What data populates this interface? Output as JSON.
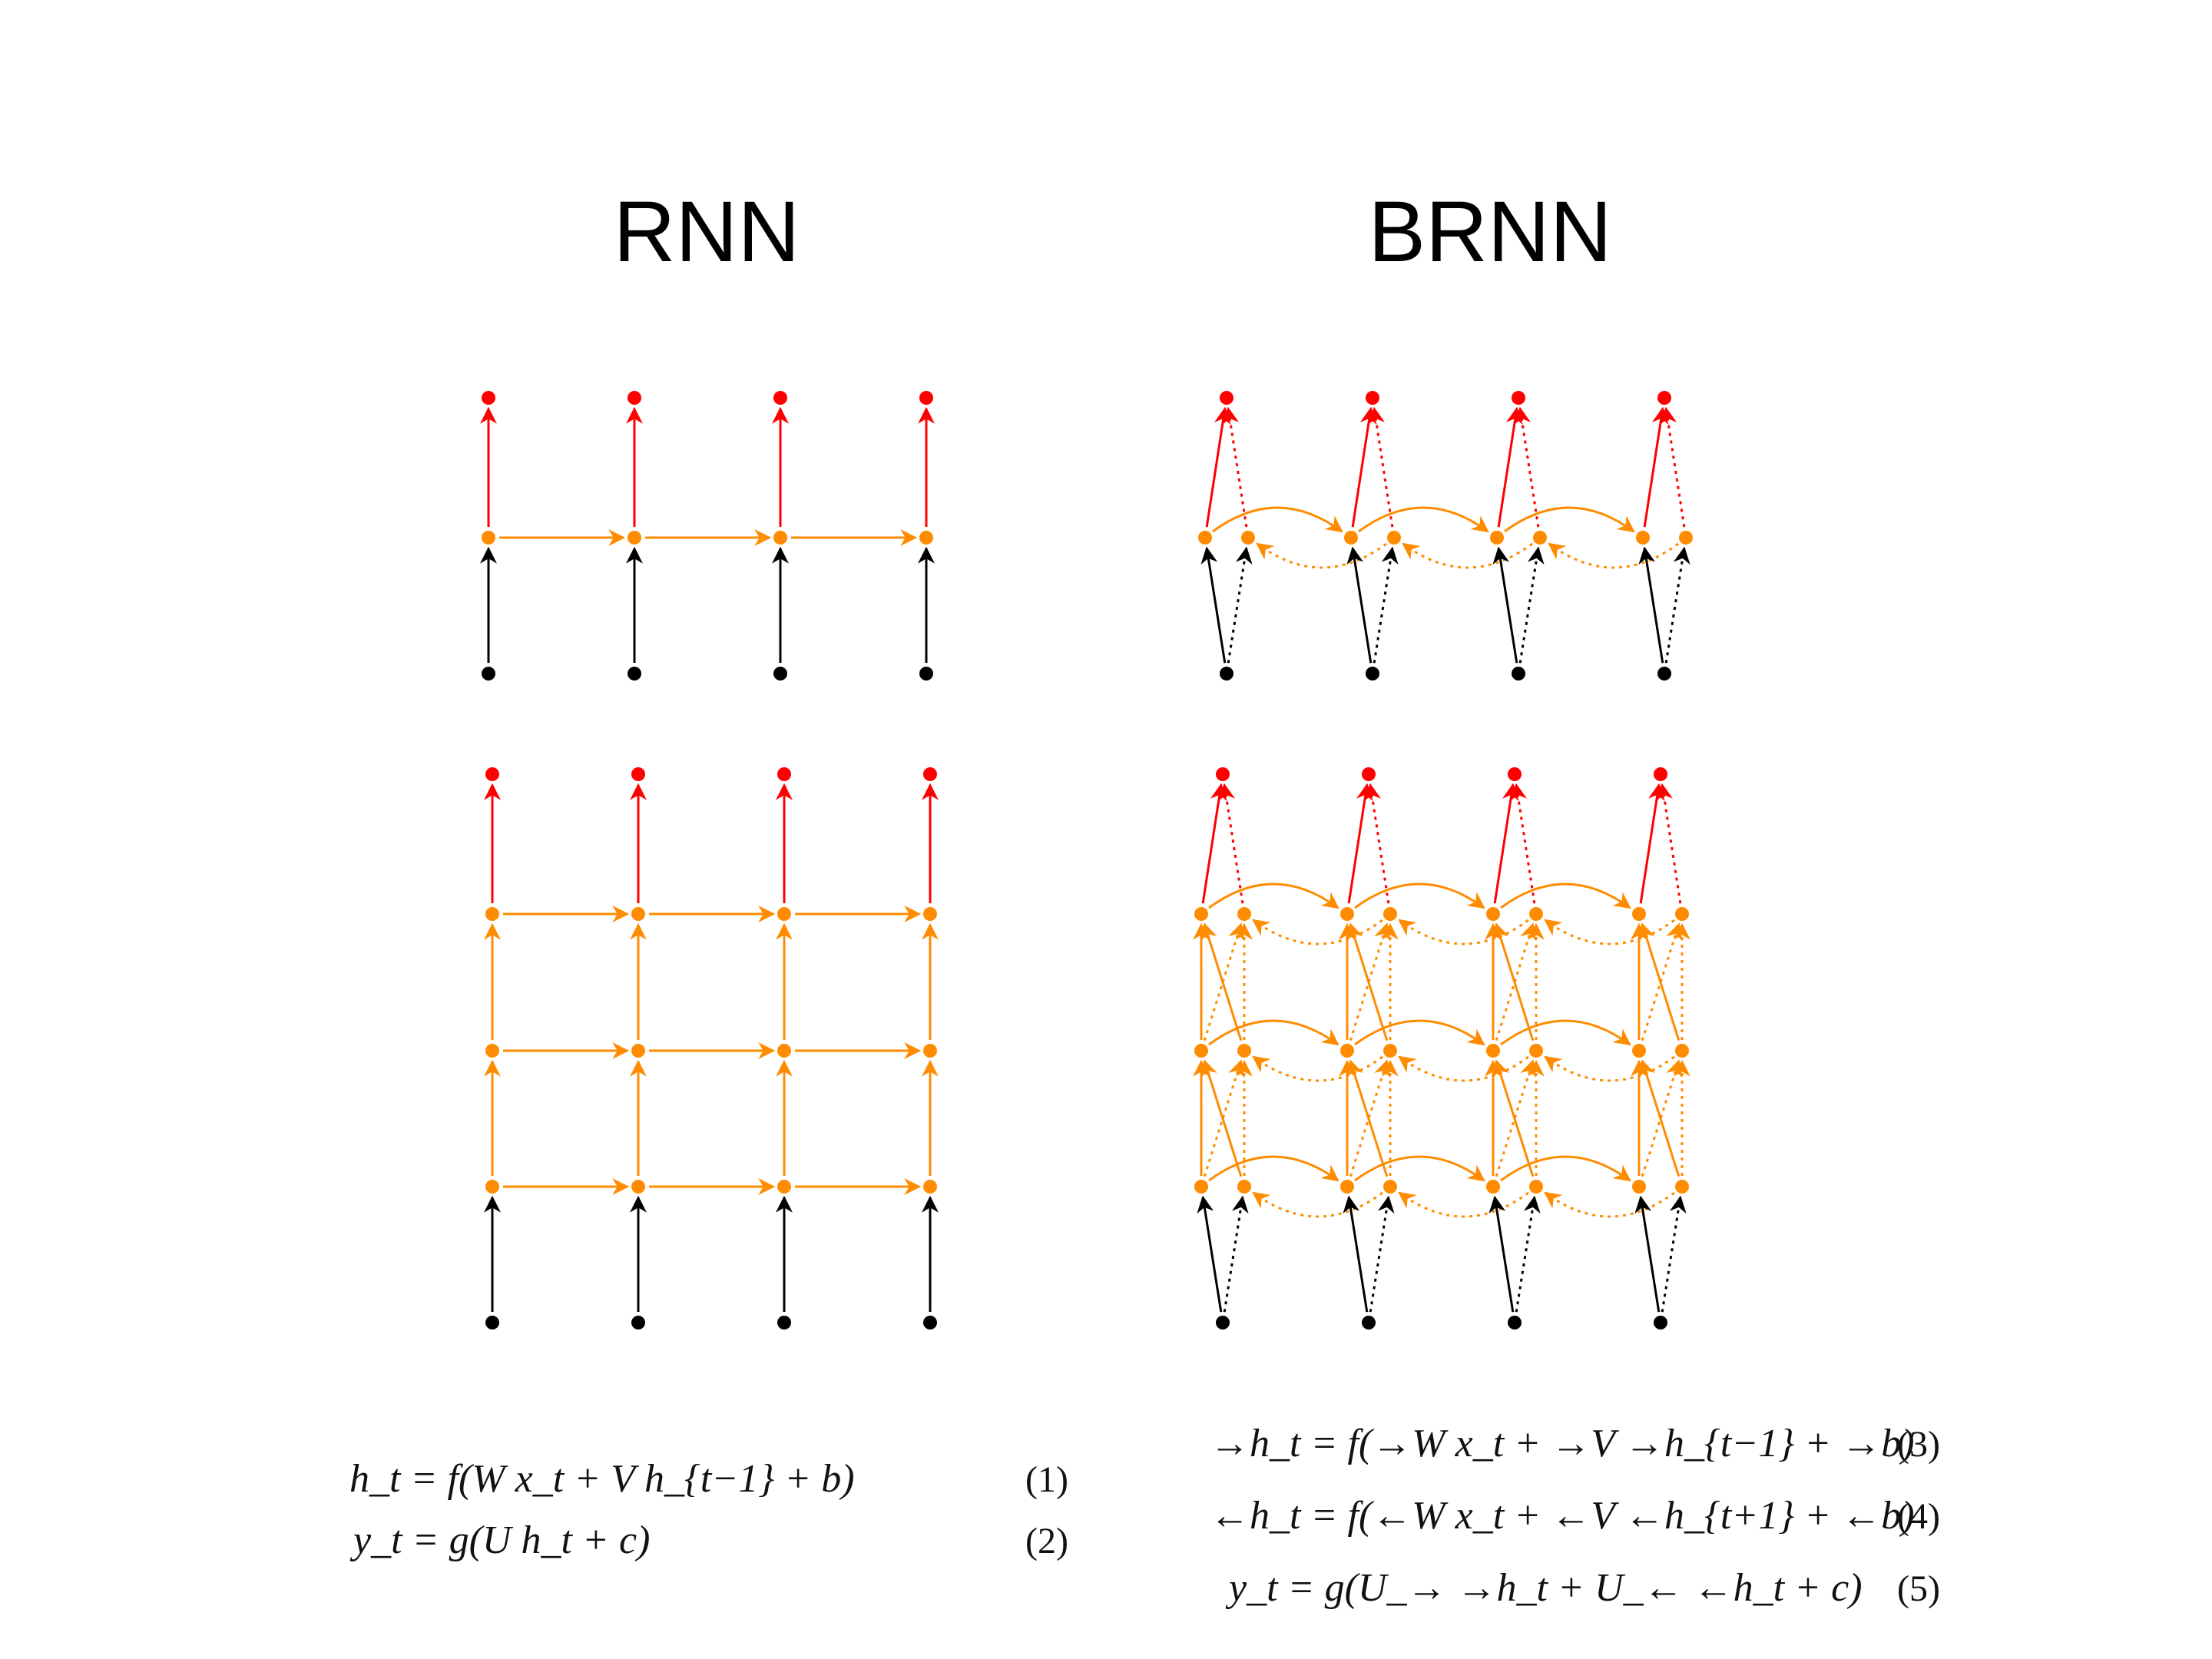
{
  "titles": {
    "rnn": "RNN",
    "brnn": "BRNN"
  },
  "equations": {
    "rnn": [
      {
        "text": "h_t = f(W x_t + V h_{t−1} + b)",
        "number": "(1)"
      },
      {
        "text": "y_t = g(U h_t + c)",
        "number": "(2)"
      }
    ],
    "brnn": [
      {
        "text": "→h_t = f(→W x_t + →V →h_{t−1} + →b)",
        "number": "(3)"
      },
      {
        "text": "←h_t = f(←W x_t + ←V ←h_{t+1} + ←b)",
        "number": "(4)"
      },
      {
        "text": "y_t = g(U_→ →h_t + U_← ←h_t + c)",
        "number": "(5)"
      }
    ]
  },
  "colors": {
    "input": "#000000",
    "hidden": "#ff8c00",
    "output": "#ff0000",
    "background": "#ffffff"
  },
  "diagrams": [
    {
      "id": "rnn-single-layer",
      "type": "rnn",
      "time_steps": 4,
      "hidden_layers": 1
    },
    {
      "id": "brnn-single-layer",
      "type": "brnn",
      "time_steps": 4,
      "hidden_layers": 1
    },
    {
      "id": "rnn-deep",
      "type": "rnn",
      "time_steps": 4,
      "hidden_layers": 3
    },
    {
      "id": "brnn-deep",
      "type": "brnn",
      "time_steps": 4,
      "hidden_layers": 3
    }
  ]
}
